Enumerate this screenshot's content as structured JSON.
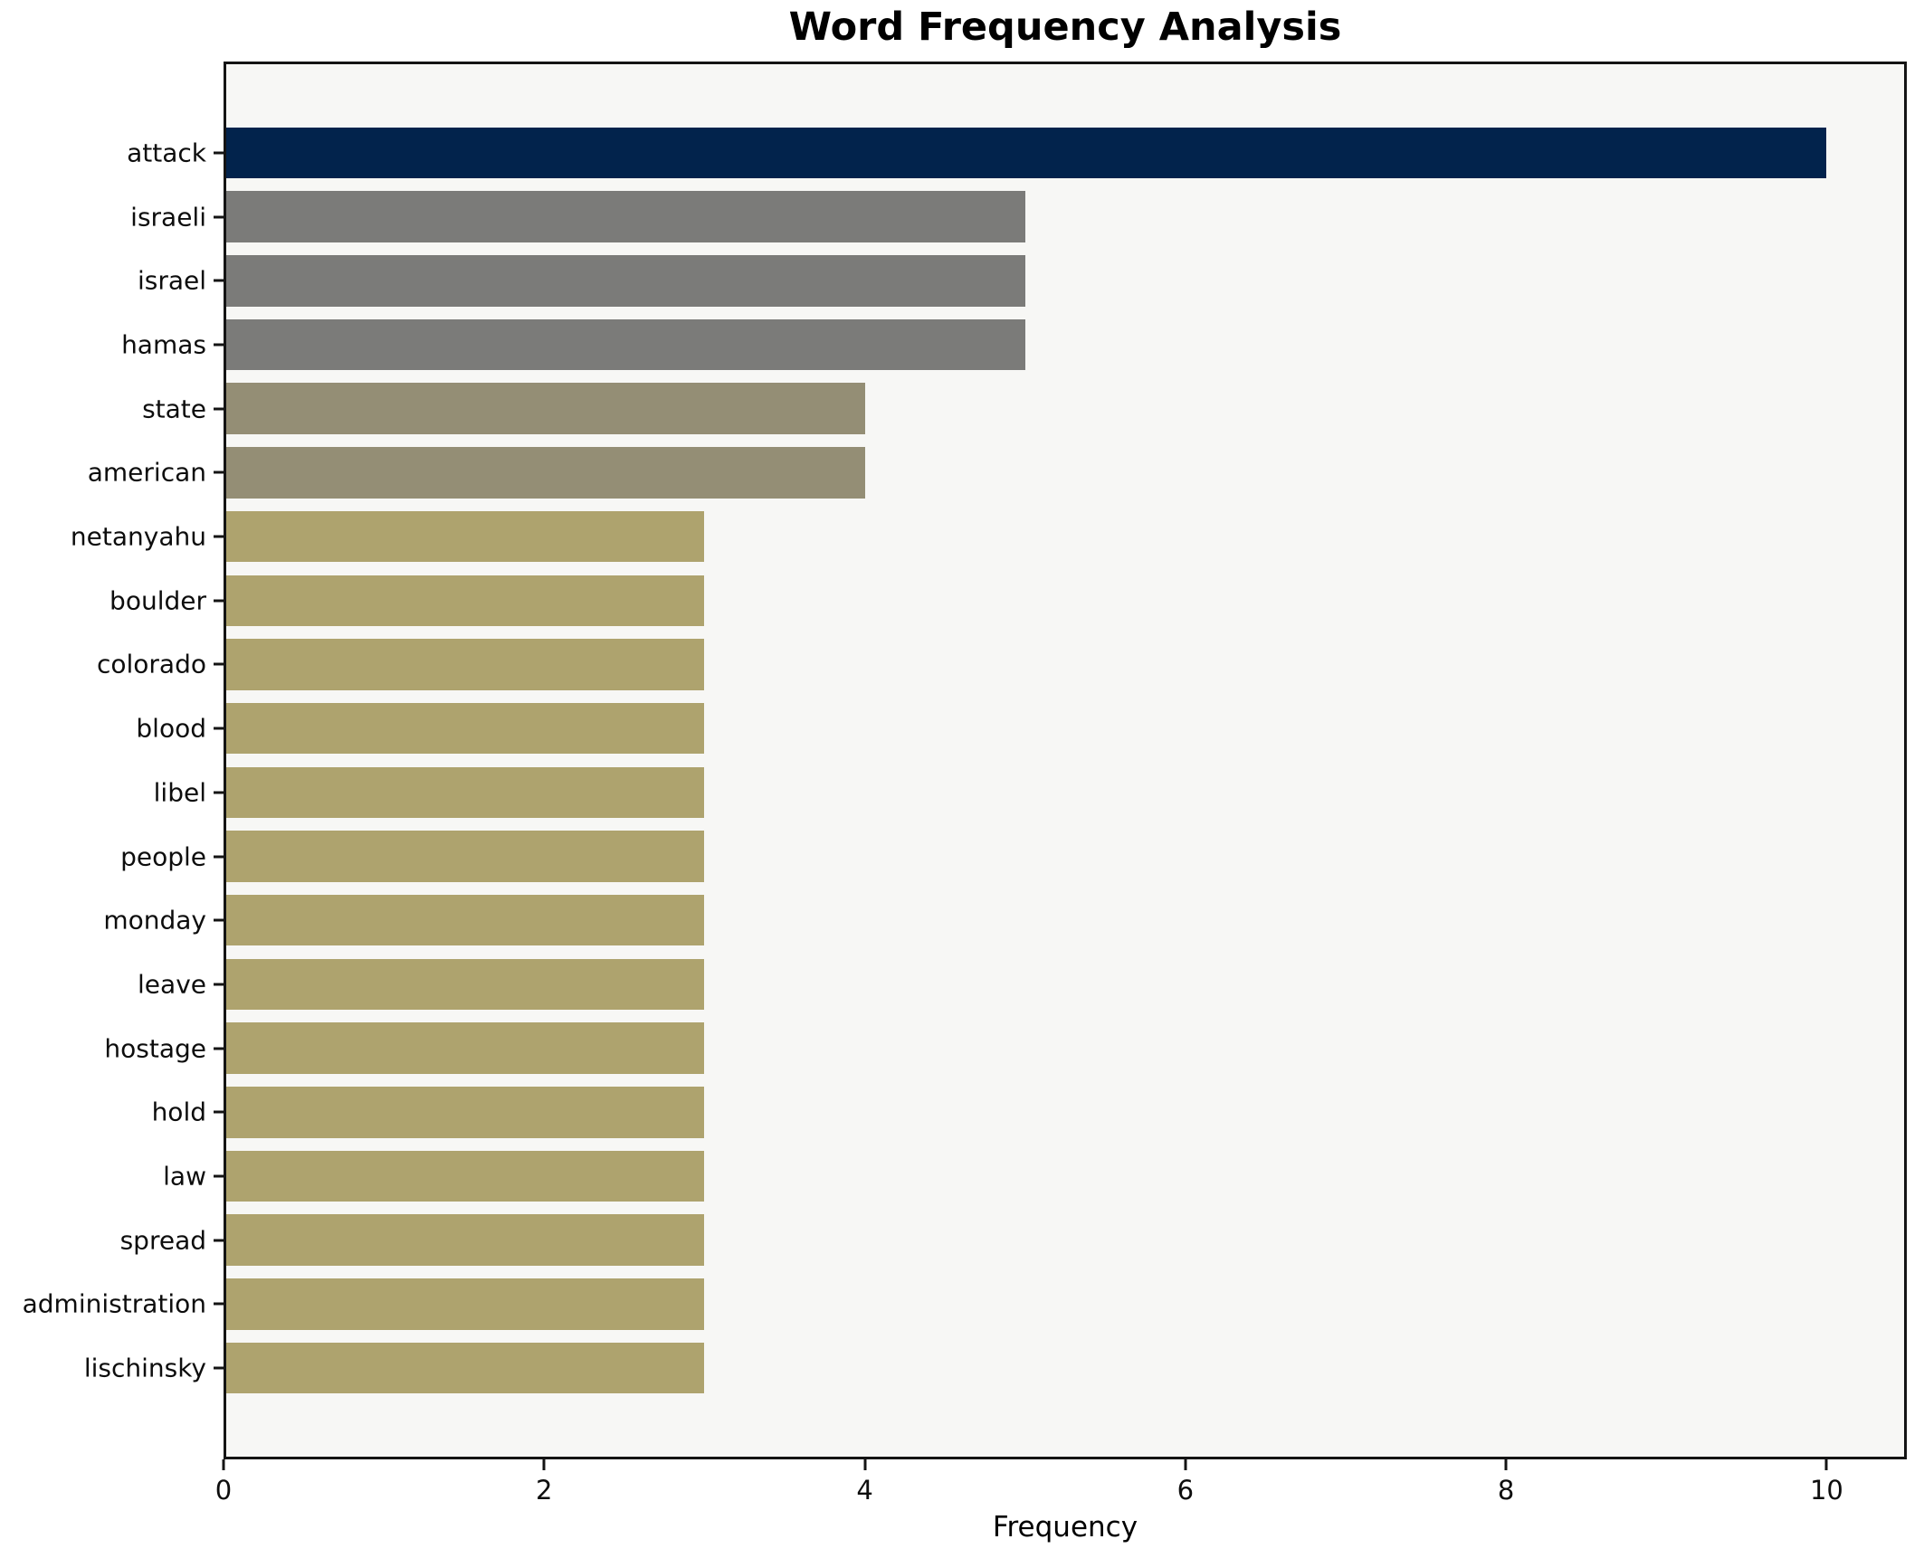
{
  "chart_data": {
    "type": "bar",
    "orientation": "horizontal",
    "title": "Word Frequency Analysis",
    "xlabel": "Frequency",
    "ylabel": "",
    "xlim": [
      0,
      10.5
    ],
    "x_ticks": [
      0,
      2,
      4,
      6,
      8,
      10
    ],
    "grid": false,
    "legend_position": "none",
    "plot_background": "#f7f7f5",
    "figure_background": "#ffffff",
    "spine_color": "#141414",
    "categories": [
      "attack",
      "israeli",
      "israel",
      "hamas",
      "state",
      "american",
      "netanyahu",
      "boulder",
      "colorado",
      "blood",
      "libel",
      "people",
      "monday",
      "leave",
      "hostage",
      "hold",
      "law",
      "spread",
      "administration",
      "lischinsky"
    ],
    "values": [
      10,
      5,
      5,
      5,
      4,
      4,
      3,
      3,
      3,
      3,
      3,
      3,
      3,
      3,
      3,
      3,
      3,
      3,
      3,
      3
    ],
    "colors": [
      "#02234c",
      "#7b7b79",
      "#7b7b79",
      "#7b7b79",
      "#948e75",
      "#948e75",
      "#aea36e",
      "#aea36e",
      "#aea36e",
      "#aea36e",
      "#aea36e",
      "#aea36e",
      "#aea36e",
      "#aea36e",
      "#aea36e",
      "#aea36e",
      "#aea36e",
      "#aea36e",
      "#aea36e",
      "#aea36e"
    ]
  }
}
